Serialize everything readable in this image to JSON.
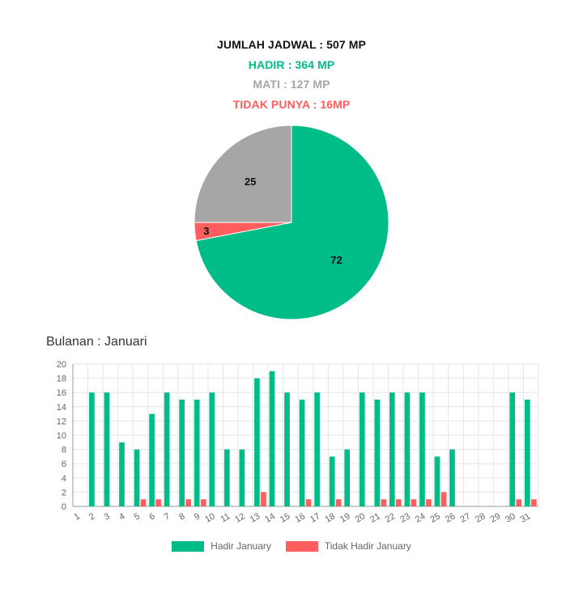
{
  "summary": {
    "total": "JUMLAH JADWAL : 507 MP",
    "hadir": "HADIR : 364 MP",
    "mati": "MATI : 127 MP",
    "tidak_punya": "TIDAK PUNYA : 16MP"
  },
  "colors": {
    "green": "#00bd88",
    "gray": "#a6a6a6",
    "red": "#ff5e5e",
    "black": "#111111"
  },
  "month_title": "Bulanan : Januari",
  "chart_data": [
    {
      "type": "pie",
      "slices": [
        {
          "label": "",
          "value": 72,
          "color": "#00bd88"
        },
        {
          "label": "",
          "value": 3,
          "color": "#ff5e5e"
        },
        {
          "label": "",
          "value": 25,
          "color": "#a6a6a6"
        }
      ],
      "start": "top",
      "direction": "clockwise"
    },
    {
      "type": "bar",
      "title": "",
      "categories": [
        "1",
        "2",
        "3",
        "4",
        "5",
        "6",
        "7",
        "8",
        "9",
        "10",
        "11",
        "12",
        "13",
        "14",
        "15",
        "16",
        "17",
        "18",
        "19",
        "20",
        "21",
        "22",
        "23",
        "24",
        "25",
        "26",
        "27",
        "28",
        "29",
        "30",
        "31"
      ],
      "series": [
        {
          "name": "Hadir January",
          "color": "#00bd88",
          "values": [
            0,
            16,
            16,
            9,
            8,
            13,
            16,
            15,
            15,
            16,
            8,
            8,
            18,
            19,
            16,
            15,
            16,
            7,
            8,
            16,
            15,
            16,
            16,
            16,
            7,
            8,
            0,
            0,
            0,
            16,
            15
          ]
        },
        {
          "name": "Tidak Hadir January",
          "color": "#ff5e5e",
          "values": [
            0,
            0,
            0,
            0,
            1,
            1,
            0,
            1,
            1,
            0,
            0,
            0,
            2,
            0,
            0,
            1,
            0,
            1,
            0,
            0,
            1,
            1,
            1,
            1,
            2,
            0,
            0,
            0,
            0,
            1,
            1
          ]
        }
      ],
      "ylim": [
        0,
        20
      ],
      "yticks": [
        0,
        2,
        4,
        6,
        8,
        10,
        12,
        14,
        16,
        18,
        20
      ],
      "grid": true,
      "legend": "bottom"
    }
  ]
}
